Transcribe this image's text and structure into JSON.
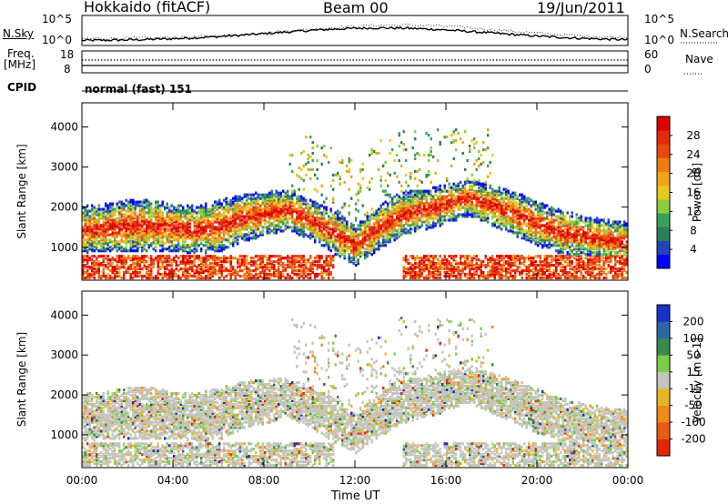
{
  "header": {
    "station": "Hokkaido (fitACF)",
    "beam": "Beam 00",
    "date": "19/Jun/2011"
  },
  "noise_panel": {
    "left_label": "N.Sky",
    "right_label": "N.Search",
    "left_ticks": [
      "10^5",
      "10^0"
    ],
    "right_ticks": [
      "10^5",
      "10^0"
    ]
  },
  "freq_panel": {
    "left_label_line1": "Freq.",
    "left_label_line2": "[MHz]",
    "right_label": "Nave",
    "left_ticks": [
      "18",
      "8"
    ],
    "right_ticks": [
      "60",
      "0"
    ]
  },
  "cpid": {
    "label": "CPID",
    "value": "normal (fast) 151"
  },
  "chart_data": [
    {
      "type": "heatmap",
      "title": "",
      "xlabel": "",
      "ylabel": "Slant Range [km]",
      "x_ticks": [
        "00:00",
        "04:00",
        "08:00",
        "12:00",
        "16:00",
        "20:00",
        "00:00"
      ],
      "y_ticks": [
        "1000",
        "2000",
        "3000",
        "4000"
      ],
      "ylim": [
        180,
        4600
      ],
      "colorbar": {
        "label": "Power [dB]",
        "ticks": [
          "4",
          "8",
          "12",
          "16",
          "20",
          "24",
          "28"
        ],
        "colors": [
          "#0000ff",
          "#2244bb",
          "#2b7f58",
          "#3aa05a",
          "#8bcd3d",
          "#e6c81e",
          "#f2a317",
          "#ee7a12",
          "#e94a10",
          "#e42a0c",
          "#dc0000"
        ]
      },
      "x": [
        0,
        1,
        2,
        3,
        4,
        5,
        6,
        7,
        8,
        9,
        10,
        11,
        12,
        13,
        14,
        15,
        16,
        17,
        18,
        19,
        20,
        21,
        22,
        23,
        24
      ],
      "echo_band_center_km": [
        1400,
        1450,
        1500,
        1500,
        1450,
        1400,
        1500,
        1700,
        1800,
        1900,
        1650,
        1350,
        1000,
        1450,
        1800,
        1900,
        2050,
        2200,
        2000,
        1800,
        1550,
        1350,
        1250,
        1150,
        1100
      ],
      "echo_band_width_km": [
        600,
        600,
        650,
        650,
        600,
        600,
        650,
        600,
        550,
        500,
        500,
        550,
        500,
        550,
        550,
        500,
        500,
        450,
        500,
        550,
        550,
        550,
        500,
        500,
        500
      ]
    },
    {
      "type": "heatmap",
      "title": "",
      "xlabel": "Time UT",
      "ylabel": "Slant Range [km]",
      "x_ticks": [
        "00:00",
        "04:00",
        "08:00",
        "12:00",
        "16:00",
        "20:00",
        "00:00"
      ],
      "y_ticks": [
        "1000",
        "2000",
        "3000",
        "4000"
      ],
      "ylim": [
        180,
        4600
      ],
      "colorbar": {
        "label": "Velocity [m s-1]",
        "ticks": [
          "200",
          "100",
          "50",
          "15",
          "-15",
          "-50",
          "-100",
          "-200"
        ],
        "colors": [
          "#1b30c8",
          "#2d66a8",
          "#3a8a4c",
          "#7ccc4a",
          "#c4c4bc",
          "#e8b522",
          "#f08a18",
          "#ea5a12",
          "#e02808"
        ]
      }
    }
  ]
}
